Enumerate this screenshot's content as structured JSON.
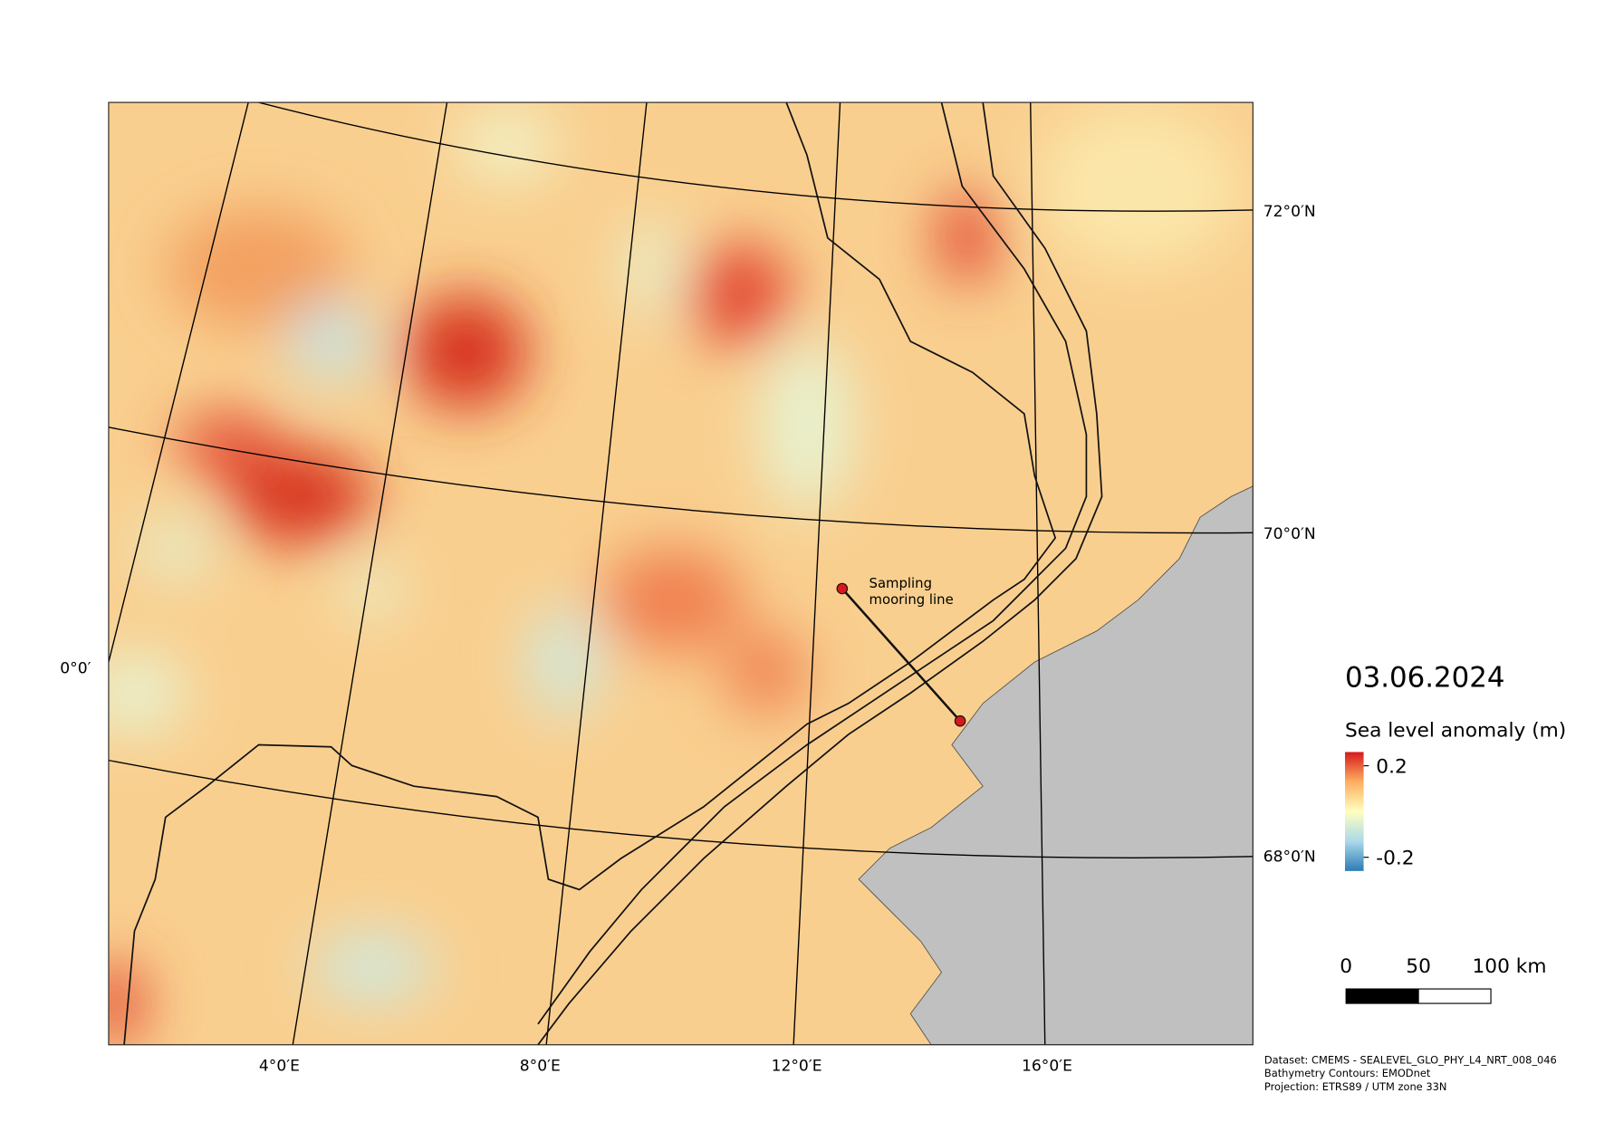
{
  "map": {
    "date": "03.06.2024",
    "legend": {
      "title": "Sea level anomaly (m)",
      "colorbar": {
        "lim": [
          -0.26,
          0.26
        ],
        "ticks": [
          0.2,
          -0.2
        ],
        "colors": [
          "#d7191c",
          "#fdae61",
          "#ffffbf",
          "#abd9e9",
          "#2c7bb6"
        ]
      }
    },
    "scale_bar": {
      "lim": [
        0,
        100
      ],
      "ticks": [
        0,
        50,
        {
          "value": 100,
          "label": "100 km"
        }
      ]
    },
    "lat_labels": [
      "72°0′N",
      "70°0′N",
      "68°0′N",
      "0°0′"
    ],
    "lon_labels": [
      "4°0′E",
      "8°0′E",
      "12°0′E",
      "16°0′E"
    ],
    "annotation": [
      "Sampling",
      "mooring line"
    ],
    "credits": [
      "Dataset: CMEMS - SEALEVEL_GLO_PHY_L4_NRT_008_046",
      "Bathymetry Contours: EMODnet",
      "Projection: ETRS89 / UTM zone 33N"
    ]
  }
}
